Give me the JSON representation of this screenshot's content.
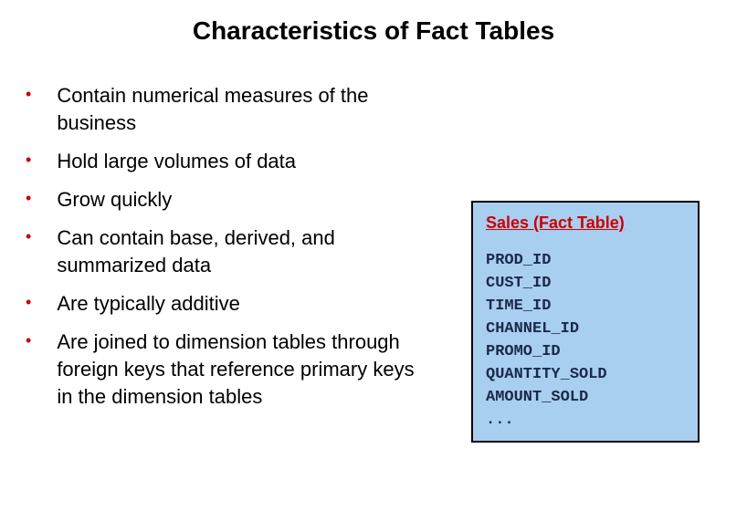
{
  "title": "Characteristics of Fact Tables",
  "bullets": [
    "Contain numerical measures of the business",
    "Hold large volumes of data",
    "Grow quickly",
    "Can contain base, derived, and summarized data",
    "Are typically additive",
    "Are joined to dimension tables through foreign keys that reference primary keys in the dimension tables"
  ],
  "fact_table": {
    "header": "Sales (Fact Table)",
    "columns_text": "PROD_ID\nCUST_ID\nTIME_ID\nCHANNEL_ID\nPROMO_ID\nQUANTITY_SOLD\nAMOUNT_SOLD\n...",
    "background_color": "#a8cef0",
    "border_color": "#000000",
    "header_color": "#cc0000",
    "column_text_color": "#1a2a4a"
  },
  "colors": {
    "bullet_color": "#cc0000",
    "text_color": "#000000",
    "background": "#ffffff"
  }
}
